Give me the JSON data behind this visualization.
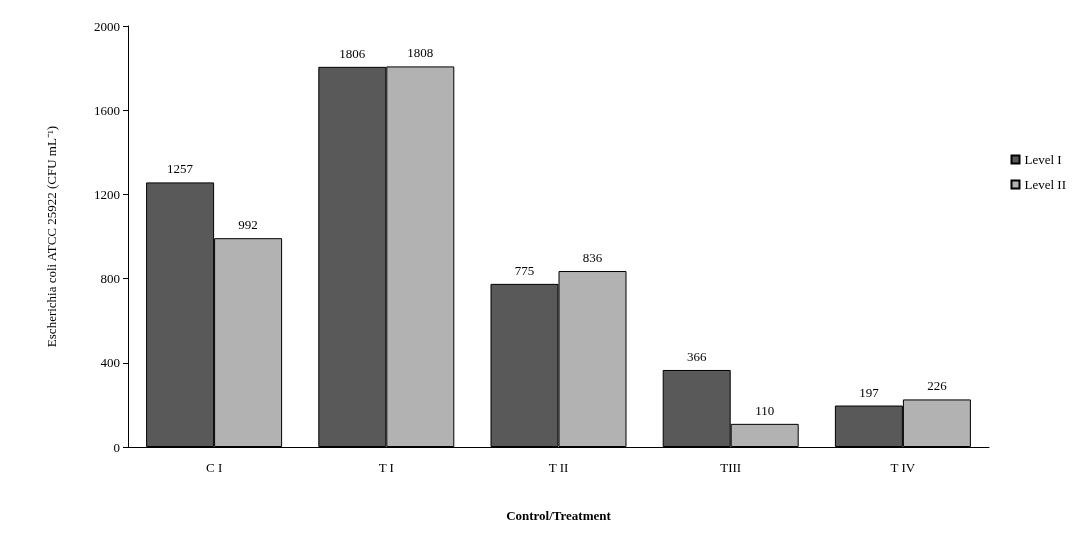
{
  "chart_data": {
    "type": "bar",
    "xlabel": "Control/Treatment",
    "ylabel": "Escherichia coli ATCC 25922 (CFU mL⁻¹)",
    "categories": [
      "C I",
      "T I",
      "T II",
      "TIII",
      "T IV"
    ],
    "series": [
      {
        "name": "Level I",
        "color": "#595959",
        "values": [
          1257,
          1806,
          775,
          366,
          197
        ]
      },
      {
        "name": "Level II",
        "color": "#b2b2b2",
        "values": [
          992,
          1808,
          836,
          110,
          226
        ]
      }
    ],
    "ylim": [
      0,
      2000
    ],
    "yticks": [
      0,
      400,
      800,
      1200,
      1600,
      2000
    ],
    "grid": false,
    "legend": "right",
    "data_labels": true
  }
}
